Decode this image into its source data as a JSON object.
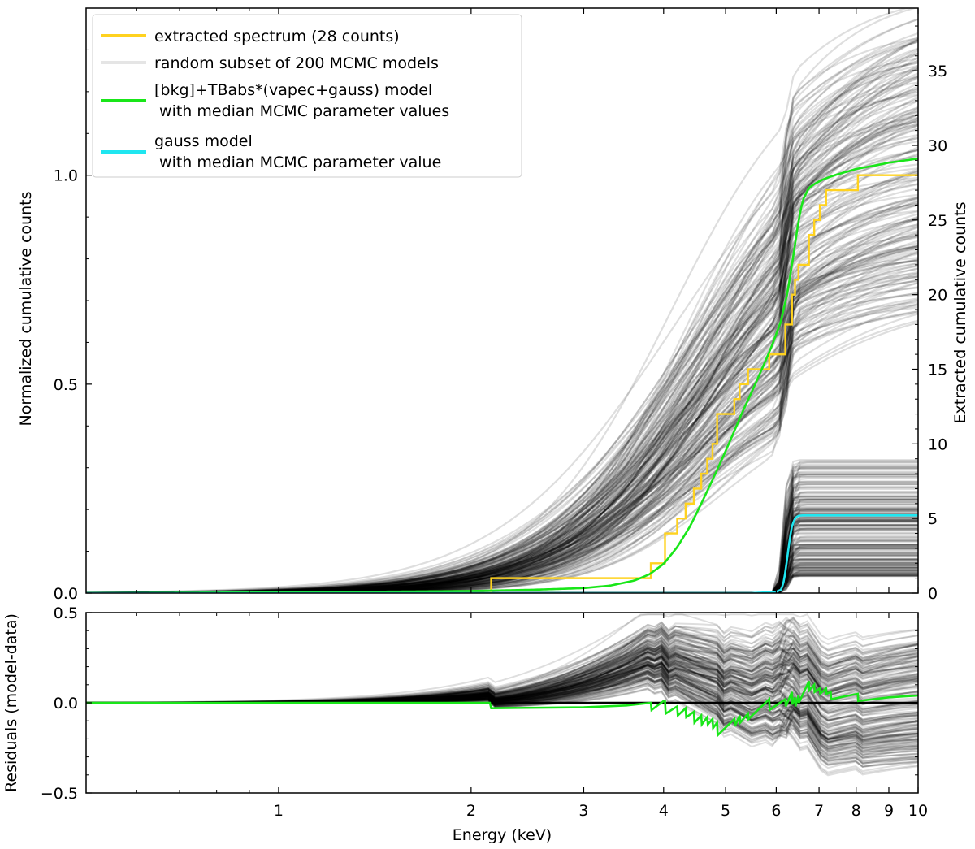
{
  "colors": {
    "data": "#FFD21F",
    "mcmc": "#000000",
    "median_model": "#19E619",
    "gauss": "#1FE6F0",
    "right_axis": "#FFD21F",
    "frame": "#000000"
  },
  "chart_data": [
    {
      "id": "top",
      "type": "line",
      "title": "",
      "xscale": "log",
      "xlim": [
        0.5,
        10
      ],
      "ylim": [
        0,
        1.4
      ],
      "ylabel": "Normalized cumulative counts",
      "yticks": [
        0.0,
        0.5,
        1.0
      ],
      "ytick_labels": [
        "0.0",
        "0.5",
        "1.0"
      ],
      "ylabel_right": "Extracted cumulative counts",
      "ylim_right": [
        0,
        39.2
      ],
      "yticks_right": [
        0,
        5,
        10,
        15,
        20,
        25,
        30,
        35
      ],
      "ytick_labels_right": [
        "0",
        "5",
        "10",
        "15",
        "20",
        "25",
        "30",
        "35"
      ],
      "legend_position": "upper-left",
      "legend": [
        {
          "label": "extracted spectrum (28 counts)",
          "color": "#FFD21F",
          "opacity": 1
        },
        {
          "label": "random subset of 200 MCMC models",
          "color": "#999999",
          "opacity": 0.25
        },
        {
          "label": "[bkg]+TBabs*(vapec+gauss) model",
          "label2": " with median MCMC parameter values",
          "color": "#19E619",
          "opacity": 1
        },
        {
          "label": "gauss model",
          "label2": " with median MCMC parameter value",
          "color": "#1FE6F0",
          "opacity": 1
        }
      ],
      "extracted_spectrum": {
        "step": "post",
        "energies_keV": [
          0.5,
          2.15,
          3.82,
          4.02,
          4.2,
          4.33,
          4.46,
          4.58,
          4.68,
          4.77,
          4.85,
          5.16,
          5.26,
          5.42,
          5.85,
          6.2,
          6.35,
          6.42,
          6.5,
          6.75,
          6.88,
          7.02,
          7.18,
          7.3,
          8.05,
          10.0
        ],
        "counts": [
          0,
          1,
          2,
          4,
          5,
          6,
          7,
          8,
          9,
          10,
          12,
          13,
          14,
          15,
          16,
          18,
          20,
          21,
          22,
          24,
          25,
          26,
          27,
          27,
          28,
          28
        ]
      },
      "median_model": {
        "energies_keV": [
          0.5,
          1.0,
          2.0,
          2.5,
          3.0,
          3.3,
          3.6,
          3.8,
          4.0,
          4.2,
          4.4,
          4.6,
          4.8,
          5.0,
          5.3,
          5.6,
          5.9,
          6.1,
          6.25,
          6.4,
          6.5,
          6.6,
          6.75,
          6.9,
          7.1,
          7.4,
          8.0,
          9.0,
          10.0
        ],
        "values": [
          0.0,
          0.002,
          0.005,
          0.008,
          0.012,
          0.018,
          0.03,
          0.045,
          0.07,
          0.11,
          0.16,
          0.22,
          0.28,
          0.34,
          0.43,
          0.51,
          0.59,
          0.65,
          0.72,
          0.82,
          0.89,
          0.94,
          0.97,
          0.98,
          0.99,
          1.0,
          1.015,
          1.03,
          1.04
        ]
      },
      "gauss_model": {
        "energies_keV": [
          0.5,
          5.5,
          6.0,
          6.1,
          6.15,
          6.2,
          6.25,
          6.3,
          6.35,
          6.4,
          6.45,
          6.5,
          6.6,
          7.0,
          10.0
        ],
        "values": [
          0.0,
          0.0,
          0.003,
          0.008,
          0.02,
          0.05,
          0.09,
          0.13,
          0.16,
          0.175,
          0.182,
          0.185,
          0.186,
          0.186,
          0.186
        ]
      },
      "mcmc_models": {
        "count": 200,
        "seed": 7,
        "onset_range_keV": [
          3.2,
          5.4
        ],
        "final_range": [
          0.7,
          1.45
        ],
        "gauss_final_range": [
          0.04,
          0.32
        ]
      }
    },
    {
      "id": "bottom",
      "type": "line",
      "title": "",
      "xscale": "log",
      "xlim": [
        0.5,
        10
      ],
      "ylim": [
        -0.5,
        0.5
      ],
      "ylabel": "Residuals (model-data)",
      "xlabel": "Energy (keV)",
      "yticks": [
        -0.5,
        0.0,
        0.5
      ],
      "ytick_labels": [
        "−0.5",
        "0.0",
        "0.5"
      ],
      "xticks": [
        1,
        2,
        3,
        4,
        5,
        6,
        7,
        8,
        9,
        10
      ],
      "xtick_labels": [
        "1",
        "2",
        "3",
        "4",
        "5",
        "6",
        "7",
        "8",
        "9",
        "10"
      ],
      "zero_line": 0.0,
      "median_residual": {
        "energies_keV": [
          0.5,
          2.14,
          2.15,
          3.0,
          3.5,
          3.82,
          3.83,
          4.0,
          4.02,
          4.03,
          4.2,
          4.21,
          4.33,
          4.34,
          4.46,
          4.47,
          4.58,
          4.59,
          4.68,
          4.69,
          4.77,
          4.78,
          4.85,
          4.86,
          5.16,
          5.17,
          5.26,
          5.27,
          5.42,
          5.43,
          5.85,
          5.86,
          6.2,
          6.21,
          6.35,
          6.36,
          6.42,
          6.43,
          6.5,
          6.51,
          6.75,
          6.76,
          6.88,
          6.89,
          7.02,
          7.03,
          7.18,
          7.19,
          7.3,
          7.31,
          8.05,
          8.06,
          9.0,
          10.0
        ],
        "values": [
          0.0,
          0.0,
          -0.03,
          -0.025,
          -0.015,
          0.0,
          -0.04,
          0.01,
          0.01,
          -0.06,
          -0.02,
          -0.07,
          -0.03,
          -0.08,
          -0.05,
          -0.11,
          -0.07,
          -0.12,
          -0.08,
          -0.12,
          -0.09,
          -0.14,
          -0.11,
          -0.18,
          -0.09,
          -0.13,
          -0.07,
          -0.11,
          -0.06,
          -0.09,
          0.02,
          -0.04,
          0.02,
          -0.02,
          0.06,
          -0.01,
          0.03,
          -0.02,
          0.04,
          0.0,
          0.12,
          0.07,
          0.1,
          0.06,
          0.08,
          0.05,
          0.08,
          0.05,
          0.06,
          0.02,
          0.05,
          0.01,
          0.03,
          0.04
        ]
      }
    }
  ]
}
